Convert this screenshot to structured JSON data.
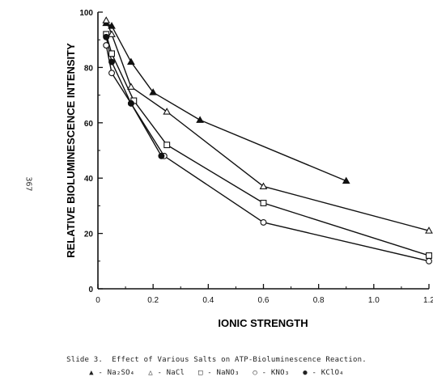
{
  "page_number": "367",
  "caption": {
    "line1": "Slide 3.  Effect of Various Salts on ATP-Bioluminescence Reaction.",
    "line2": "▲ - Na₂SO₄   △ - NaCl   □ - NaNO₃   ○ - KNO₃   ● - KClO₄"
  },
  "chart_data": {
    "type": "line",
    "xlabel": "IONIC STRENGTH",
    "ylabel": "RELATIVE BIOLUMINESCENCE INTENSITY",
    "xlim": [
      0,
      1.2
    ],
    "ylim": [
      0,
      100
    ],
    "xticks": [
      "0",
      "0.2",
      "0.4",
      "0.6",
      "0.8",
      "1.0",
      "1.2"
    ],
    "yticks": [
      "0",
      "20",
      "40",
      "60",
      "80",
      "100"
    ],
    "grid": false,
    "series": [
      {
        "name": "Na₂SO₄",
        "marker": "filled-triangle",
        "x": [
          0.03,
          0.05,
          0.12,
          0.2,
          0.37,
          0.9
        ],
        "y": [
          96,
          95,
          82,
          71,
          61,
          39
        ]
      },
      {
        "name": "NaCl",
        "marker": "open-triangle",
        "x": [
          0.03,
          0.05,
          0.12,
          0.25,
          0.6,
          1.2
        ],
        "y": [
          97,
          92,
          73,
          64,
          37,
          21
        ]
      },
      {
        "name": "NaNO₃",
        "marker": "open-square",
        "x": [
          0.03,
          0.05,
          0.13,
          0.25,
          0.6,
          1.2
        ],
        "y": [
          92,
          85,
          68,
          52,
          31,
          12
        ]
      },
      {
        "name": "KNO₃",
        "marker": "open-circle",
        "x": [
          0.03,
          0.05,
          0.12,
          0.24,
          0.6,
          1.2
        ],
        "y": [
          88,
          78,
          67,
          48,
          24,
          10
        ]
      },
      {
        "name": "KClO₄",
        "marker": "filled-circle",
        "x": [
          0.03,
          0.05,
          0.12,
          0.23
        ],
        "y": [
          91,
          82,
          67,
          48
        ]
      }
    ]
  }
}
